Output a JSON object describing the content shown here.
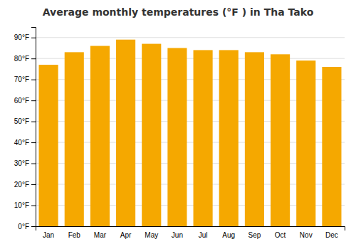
{
  "chart_data": {
    "type": "bar",
    "title": "Average monthly temperatures (°F ) in Tha Tako",
    "categories": [
      "Jan",
      "Feb",
      "Mar",
      "Apr",
      "May",
      "Jun",
      "Jul",
      "Aug",
      "Sep",
      "Oct",
      "Nov",
      "Dec"
    ],
    "values": [
      77,
      83,
      86,
      89,
      87,
      85,
      84,
      84,
      83,
      82,
      79,
      76
    ],
    "color": "#F5A800",
    "ylim": [
      0,
      95
    ],
    "yticks": [
      {
        "value": 0,
        "label": "0°F"
      },
      {
        "value": 10,
        "label": "10°F"
      },
      {
        "value": 20,
        "label": "20°F"
      },
      {
        "value": 30,
        "label": "30°F"
      },
      {
        "value": 40,
        "label": "40°F"
      },
      {
        "value": 50,
        "label": "50°F"
      },
      {
        "value": 60,
        "label": "60°F"
      },
      {
        "value": 70,
        "label": "70°F"
      },
      {
        "value": 80,
        "label": "80°F"
      },
      {
        "value": 90,
        "label": "90°F"
      }
    ],
    "grid": true
  }
}
